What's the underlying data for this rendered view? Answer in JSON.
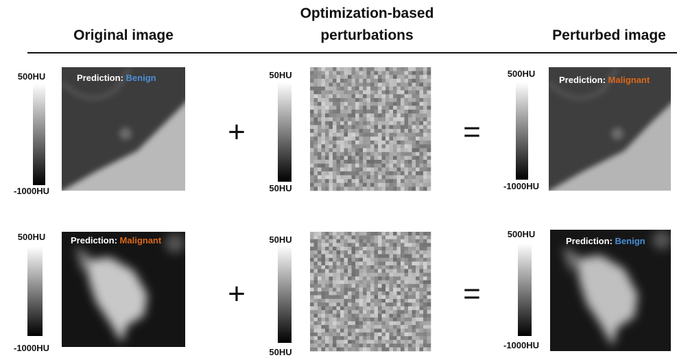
{
  "headers": [
    "Original image",
    "Optimization-based",
    "perturbations",
    "Perturbed image"
  ],
  "rows": [
    {
      "original": {
        "colorbar_max": "500HU",
        "colorbar_min": "-1000HU",
        "prediction_label": "Prediction:",
        "prediction": "Benign"
      },
      "plus": "+",
      "perturbation": {
        "colorbar_max": "50HU",
        "colorbar_min": "50HU"
      },
      "equals": "=",
      "perturbed": {
        "colorbar_max": "500HU",
        "colorbar_min": "-1000HU",
        "prediction_label": "Prediction:",
        "prediction": "Malignant"
      }
    },
    {
      "original": {
        "colorbar_max": "500HU",
        "colorbar_min": "-1000HU",
        "prediction_label": "Prediction:",
        "prediction": "Malignant"
      },
      "plus": "+",
      "perturbation": {
        "colorbar_max": "50HU",
        "colorbar_min": "50HU"
      },
      "equals": "=",
      "perturbed": {
        "colorbar_max": "500HU",
        "colorbar_min": "-1000HU",
        "prediction_label": "Prediction:",
        "prediction": "Benign"
      }
    }
  ]
}
